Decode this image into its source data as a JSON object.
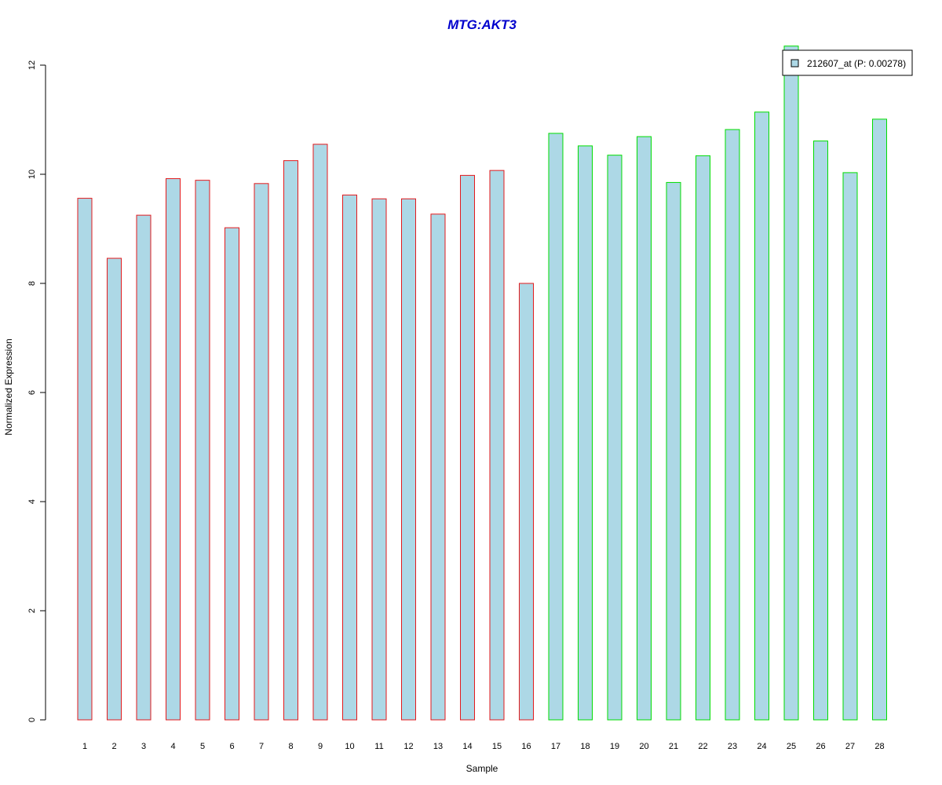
{
  "chart_data": {
    "type": "bar",
    "title": "MTG:AKT3",
    "xlabel": "Sample",
    "ylabel": "Normalized Expression",
    "ylim": [
      0,
      12
    ],
    "yticks": [
      0,
      2,
      4,
      6,
      8,
      10,
      12
    ],
    "grid": false,
    "legend": {
      "position": "top-right",
      "entries": [
        "212607_at (P: 0.00278)"
      ]
    },
    "fill_color": "#ADD8E6",
    "group_colors": [
      "#E31A1C",
      "#00DD00"
    ],
    "categories": [
      "1",
      "2",
      "3",
      "4",
      "5",
      "6",
      "7",
      "8",
      "9",
      "10",
      "11",
      "12",
      "13",
      "14",
      "15",
      "16",
      "17",
      "18",
      "19",
      "20",
      "21",
      "22",
      "23",
      "24",
      "25",
      "26",
      "27",
      "28"
    ],
    "values": [
      9.56,
      8.46,
      9.25,
      9.92,
      9.89,
      9.02,
      9.83,
      10.25,
      10.55,
      9.62,
      9.55,
      9.55,
      9.27,
      9.98,
      10.07,
      8.0,
      10.75,
      10.52,
      10.35,
      10.69,
      9.85,
      10.34,
      10.82,
      11.14,
      12.35,
      10.61,
      10.03,
      11.01
    ],
    "groups": [
      0,
      0,
      0,
      0,
      0,
      0,
      0,
      0,
      0,
      0,
      0,
      0,
      0,
      0,
      0,
      0,
      1,
      1,
      1,
      1,
      1,
      1,
      1,
      1,
      1,
      1,
      1,
      1
    ]
  }
}
